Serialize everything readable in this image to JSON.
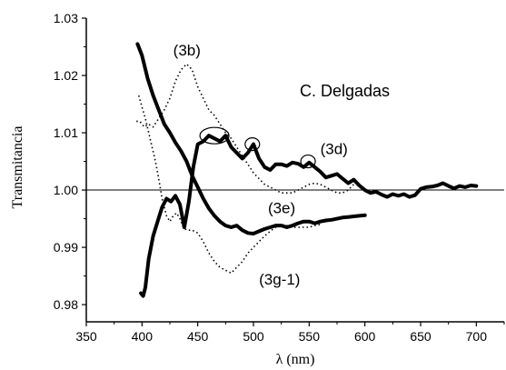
{
  "chart_data": {
    "type": "line",
    "xlabel": "λ (nm)",
    "ylabel": "Transmitancia",
    "xlim": [
      350,
      725
    ],
    "ylim": [
      0.977,
      1.03
    ],
    "xticks": [
      350,
      400,
      450,
      500,
      550,
      600,
      650,
      700
    ],
    "yticks": [
      0.98,
      0.99,
      1.0,
      1.01,
      1.02,
      1.03
    ],
    "xtick_labels": [
      "350",
      "400",
      "450",
      "500",
      "550",
      "600",
      "650",
      "700"
    ],
    "ytick_labels": [
      "0.98",
      "0.99",
      "1.00",
      "1.01",
      "1.02",
      "1.03"
    ],
    "reference_line": 1.0,
    "annotation_text": "C. Delgadas",
    "series": [
      {
        "name": "(3b)",
        "style": "dotted",
        "color": "#000000",
        "x": [
          395,
          398,
          402,
          406,
          410,
          415,
          420,
          425,
          430,
          435,
          440,
          445,
          450,
          455,
          460,
          465,
          470,
          475,
          480,
          485,
          490,
          495,
          500,
          505,
          510,
          515,
          520,
          525,
          530,
          535,
          540,
          545,
          550,
          555,
          560,
          565,
          570,
          575,
          580,
          585,
          590
        ],
        "y": [
          1.012,
          1.012,
          1.011,
          1.0115,
          1.011,
          1.0125,
          1.014,
          1.016,
          1.019,
          1.021,
          1.022,
          1.021,
          1.018,
          1.016,
          1.014,
          1.013,
          1.0115,
          1.01,
          1.009,
          1.0075,
          1.006,
          1.0045,
          1.003,
          1.002,
          1.001,
          1.0005,
          1.0,
          0.9995,
          0.9995,
          0.9995,
          1.0,
          1.0005,
          1.001,
          1.0012,
          1.001,
          1.0005,
          1.0,
          0.9995,
          0.9995,
          1.0,
          1.001
        ]
      },
      {
        "name": "(3d)",
        "style": "solid-thick",
        "color": "#000000",
        "x": [
          399,
          401,
          403,
          406,
          410,
          414,
          418,
          422,
          426,
          430,
          434,
          438,
          442,
          446,
          450,
          455,
          460,
          465,
          470,
          475,
          480,
          485,
          490,
          495,
          500,
          505,
          510,
          515,
          520,
          525,
          530,
          535,
          540,
          545,
          550,
          555,
          560,
          565,
          570,
          575,
          580,
          585,
          590,
          595,
          600,
          605,
          610,
          615,
          620,
          625,
          630,
          635,
          640,
          645,
          650,
          655,
          660,
          665,
          670,
          675,
          680,
          685,
          690,
          695,
          700
        ],
        "y": [
          0.982,
          0.9815,
          0.983,
          0.988,
          0.992,
          0.9945,
          0.997,
          0.9985,
          0.998,
          0.999,
          0.9975,
          0.9935,
          0.998,
          1.004,
          1.008,
          1.0085,
          1.0095,
          1.009,
          1.0085,
          1.0095,
          1.0075,
          1.0065,
          1.0055,
          1.0065,
          1.008,
          1.0055,
          1.004,
          1.0035,
          1.0045,
          1.0045,
          1.0042,
          1.0048,
          1.0046,
          1.004,
          1.0048,
          1.004,
          1.0032,
          1.0022,
          1.0025,
          1.0028,
          1.002,
          1.0012,
          1.0018,
          1.0008,
          1.0,
          0.9995,
          0.9997,
          0.9992,
          0.9988,
          0.9993,
          0.999,
          0.9993,
          0.9988,
          0.9991,
          1.0002,
          1.0005,
          1.0006,
          1.0008,
          1.0012,
          1.0007,
          1.0003,
          1.0007,
          1.0005,
          1.0008,
          1.0007
        ]
      },
      {
        "name": "(3e)",
        "style": "solid-thick",
        "color": "#000000",
        "x": [
          396,
          400,
          405,
          410,
          415,
          420,
          425,
          430,
          435,
          440,
          445,
          450,
          455,
          460,
          465,
          470,
          475,
          480,
          485,
          490,
          495,
          500,
          505,
          510,
          515,
          520,
          525,
          530,
          535,
          540,
          545,
          550,
          555,
          560,
          565,
          570,
          575,
          580,
          585,
          590,
          595,
          600
        ],
        "y": [
          1.0255,
          1.0235,
          1.0195,
          1.0165,
          1.014,
          1.0115,
          1.01,
          1.0083,
          1.0068,
          1.005,
          1.0025,
          1.0005,
          0.9985,
          0.9968,
          0.9955,
          0.9945,
          0.9938,
          0.9935,
          0.9938,
          0.993,
          0.9925,
          0.9924,
          0.9928,
          0.9932,
          0.9935,
          0.9938,
          0.9938,
          0.9935,
          0.9938,
          0.9942,
          0.9945,
          0.9945,
          0.9942,
          0.9945,
          0.9947,
          0.9948,
          0.995,
          0.9952,
          0.9953,
          0.9954,
          0.9955,
          0.9956
        ]
      },
      {
        "name": "(3g-1)",
        "style": "dotted",
        "color": "#000000",
        "x": [
          397,
          400,
          403,
          406,
          409,
          412,
          415,
          418,
          420,
          422,
          425,
          428,
          431,
          434,
          437,
          440,
          445,
          450,
          455,
          460,
          465,
          470,
          475,
          480,
          485,
          490,
          495,
          500,
          505,
          510,
          515,
          520,
          525,
          530,
          535,
          540,
          545,
          550,
          555,
          560
        ],
        "y": [
          1.0165,
          1.0145,
          1.0125,
          1.01,
          1.0075,
          1.005,
          1.002,
          0.9985,
          0.997,
          0.9955,
          0.9945,
          0.9955,
          0.996,
          0.995,
          0.9935,
          0.993,
          0.993,
          0.9925,
          0.991,
          0.989,
          0.9875,
          0.9865,
          0.986,
          0.9855,
          0.9865,
          0.9875,
          0.989,
          0.99,
          0.991,
          0.992,
          0.9928,
          0.9935,
          0.994,
          0.9938,
          0.9935,
          0.9935,
          0.9935,
          0.9935,
          0.9938,
          0.994
        ]
      }
    ],
    "highlight_circles": [
      {
        "x": 465,
        "y": 1.0095
      },
      {
        "x": 499,
        "y": 1.008
      },
      {
        "x": 549,
        "y": 1.005
      }
    ],
    "series_labels": [
      {
        "text": "(3b)",
        "x": 428,
        "y": 1.0235
      },
      {
        "text": "(3d)",
        "x": 560,
        "y": 1.0063
      },
      {
        "text": "(3e)",
        "x": 513,
        "y": 0.996
      },
      {
        "text": "(3g-1)",
        "x": 505,
        "y": 0.9835
      }
    ]
  }
}
